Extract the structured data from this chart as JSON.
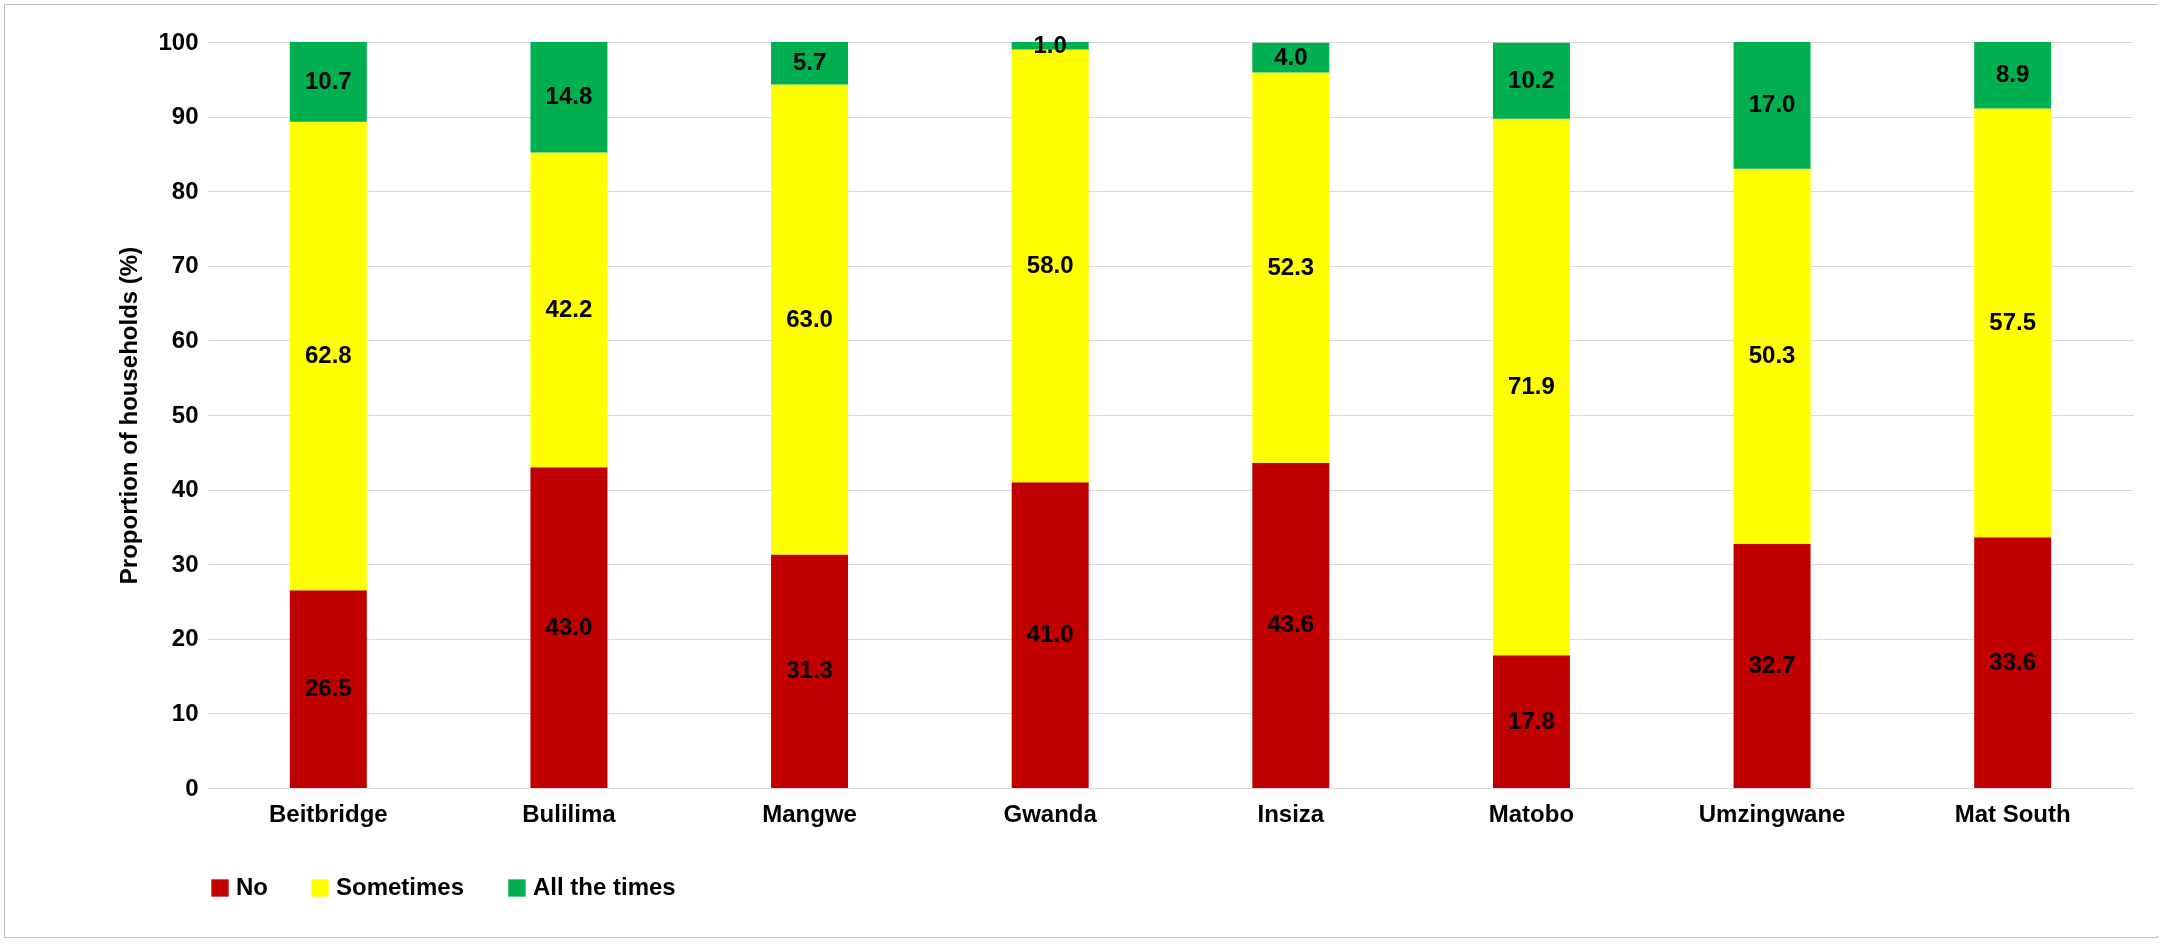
{
  "chart_data": {
    "type": "bar",
    "stacked": true,
    "ylabel": "Proportion of households (%)",
    "categories": [
      "Beitbridge",
      "Bulilima",
      "Mangwe",
      "Gwanda",
      "Insiza",
      "Matobo",
      "Umzingwane",
      "Mat South"
    ],
    "series": [
      {
        "name": "No",
        "color": "#c00000",
        "values": [
          26.5,
          43.0,
          31.3,
          41.0,
          43.6,
          17.8,
          32.7,
          33.6
        ],
        "value_labels": [
          "26.5",
          "43.0",
          "31.3",
          "41.0",
          "43.6",
          "17.8",
          "32.7",
          "33.6"
        ]
      },
      {
        "name": "Sometimes",
        "color": "#ffff00",
        "values": [
          62.8,
          42.2,
          63.0,
          58.0,
          52.3,
          71.9,
          50.3,
          57.5
        ],
        "value_labels": [
          "62.8",
          "42.2",
          "63.0",
          "58.0",
          "52.3",
          "71.9",
          "50.3",
          "57.5"
        ]
      },
      {
        "name": "All the times",
        "color": "#00b050",
        "values": [
          10.7,
          14.8,
          5.7,
          1.0,
          4.0,
          10.2,
          17.0,
          8.9
        ],
        "value_labels": [
          "10.7",
          "14.8",
          "5.7",
          "1.0",
          "4.0",
          "10.2",
          "17.0",
          "8.9"
        ]
      }
    ],
    "ylim": [
      0,
      100
    ],
    "yticks": [
      0,
      10,
      20,
      30,
      40,
      50,
      60,
      70,
      80,
      90,
      100
    ],
    "grid": "y",
    "legend": "bottom"
  }
}
